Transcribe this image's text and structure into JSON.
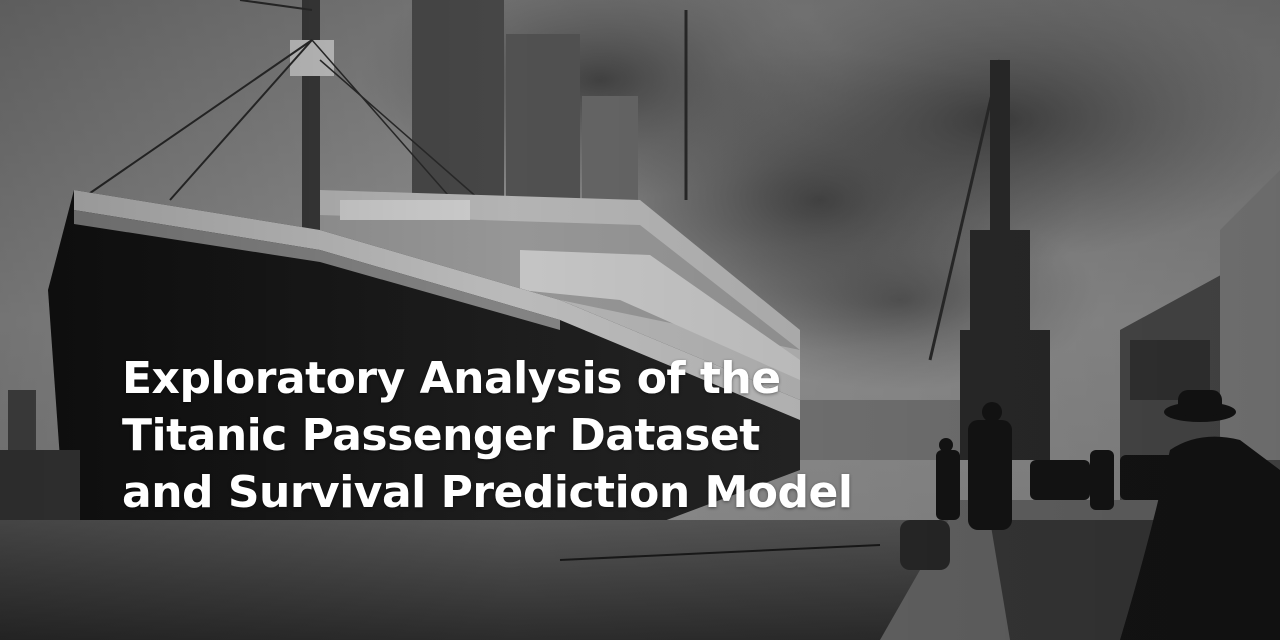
{
  "image": {
    "description_free": true,
    "palette": {
      "sky": "#8a8a8a",
      "smoke": "#555555",
      "hull": "#1a1a1a",
      "superstructure": "#bdbdbd",
      "water": "#4a4a4a",
      "dock": "#6a6a6a"
    }
  },
  "title": {
    "lines": [
      "Exploratory Analysis of the",
      "Titanic Passenger Dataset",
      "and Survival Prediction Model"
    ],
    "color": "#ffffff"
  }
}
